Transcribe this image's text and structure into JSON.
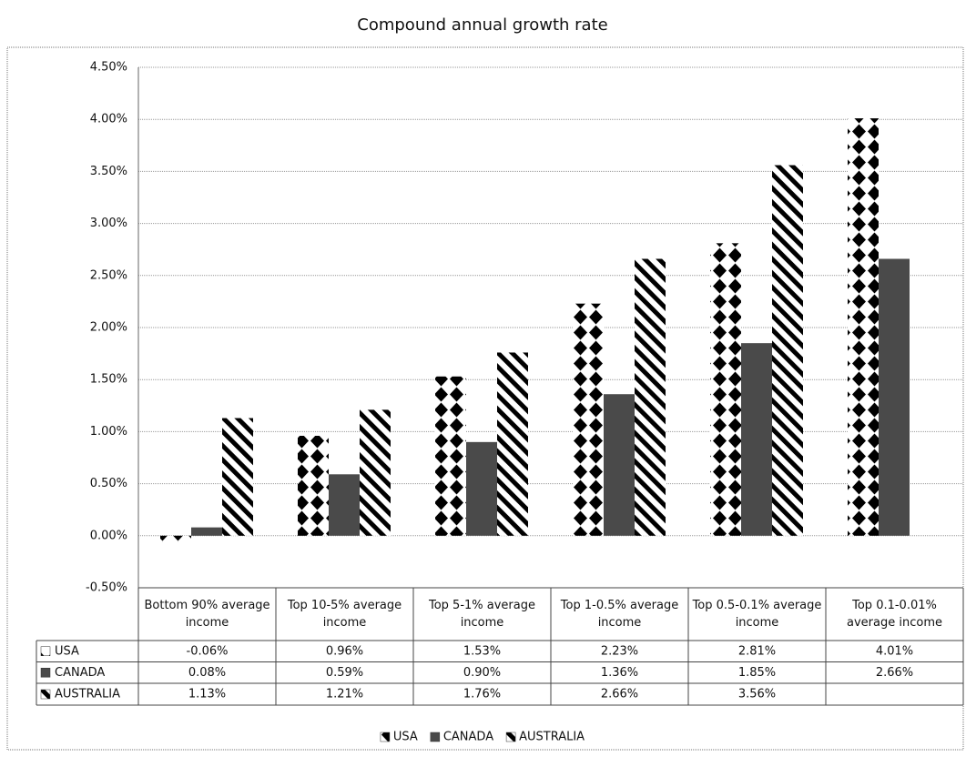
{
  "chart_data": {
    "type": "bar",
    "title": "Compound annual growth rate",
    "categories": [
      "Bottom 90% average income",
      "Top 10-5% average income",
      "Top 5-1% average income",
      "Top 1-0.5% average income",
      "Top 0.5-0.1% average income",
      "Top 0.1-0.01% average income"
    ],
    "series": [
      {
        "name": "USA",
        "color": "#000000",
        "pattern": "diamonds",
        "values": [
          -0.06,
          0.96,
          1.53,
          2.23,
          2.81,
          4.01
        ],
        "value_labels": [
          "-0.06%",
          "0.96%",
          "1.53%",
          "2.23%",
          "2.81%",
          "4.01%"
        ]
      },
      {
        "name": "CANADA",
        "color": "#4a4a4a",
        "pattern": "solid",
        "values": [
          0.08,
          0.59,
          0.9,
          1.36,
          1.85,
          2.66
        ],
        "value_labels": [
          "0.08%",
          "0.59%",
          "0.90%",
          "1.36%",
          "1.85%",
          "2.66%"
        ]
      },
      {
        "name": "AUSTRALIA",
        "color": "#000000",
        "pattern": "diagonal",
        "values": [
          1.13,
          1.21,
          1.76,
          2.66,
          3.56,
          null
        ],
        "value_labels": [
          "1.13%",
          "1.21%",
          "1.76%",
          "2.66%",
          "3.56%",
          null
        ]
      }
    ],
    "ylim": [
      -0.5,
      4.5
    ],
    "yticks": [
      {
        "value": -0.5,
        "label": "-0.50%"
      },
      {
        "value": 0,
        "label": "0.00%"
      },
      {
        "value": 0.5,
        "label": "0.50%"
      },
      {
        "value": 1,
        "label": "1.00%"
      },
      {
        "value": 1.5,
        "label": "1.50%"
      },
      {
        "value": 2,
        "label": "2.00%"
      },
      {
        "value": 2.5,
        "label": "2.50%"
      },
      {
        "value": 3,
        "label": "3.00%"
      },
      {
        "value": 3.5,
        "label": "3.50%"
      },
      {
        "value": 4,
        "label": "4.00%"
      },
      {
        "value": 4.5,
        "label": "4.50%"
      }
    ],
    "grid": true,
    "legend": "bottom"
  }
}
